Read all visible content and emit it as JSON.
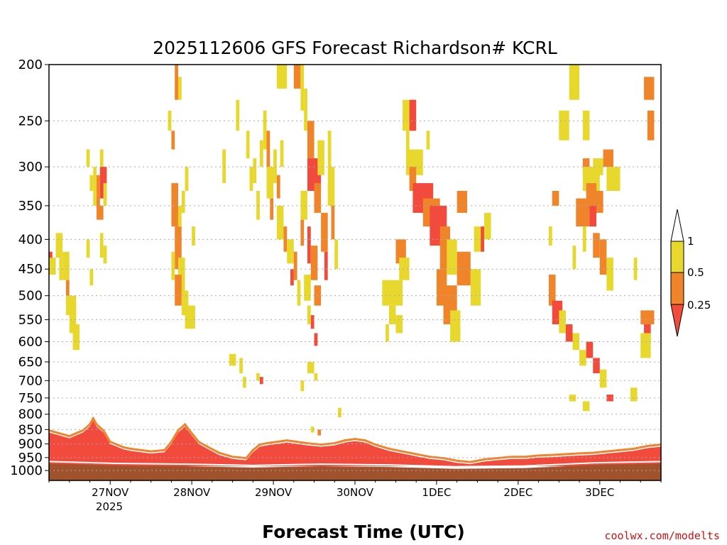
{
  "chart_data": {
    "type": "heatmap",
    "title": "2025112606 GFS Forecast Richardson# KCRL",
    "xlabel": "Forecast Time (UTC)",
    "credit": "coolwx.com/modelts",
    "y_axis": {
      "scale": "log-pressure",
      "ylim": [
        1040,
        200
      ],
      "tick_labels": [
        "200",
        "250",
        "300",
        "350",
        "400",
        "450",
        "500",
        "550",
        "600",
        "650",
        "700",
        "750",
        "800",
        "850",
        "900",
        "950",
        "1000"
      ]
    },
    "x_axis": {
      "xlim_hours": [
        0,
        180
      ],
      "tick_labels": [
        "27NOV",
        "28NOV",
        "29NOV",
        "30NOV",
        "1DEC",
        "2DEC",
        "3DEC"
      ],
      "tick_hours": [
        18,
        42,
        66,
        90,
        114,
        138,
        162
      ],
      "year_label": "2025"
    },
    "legend": {
      "bins": [
        {
          "label": "0.25",
          "color": "#f24a3c"
        },
        {
          "label": "0.5",
          "color": "#f0842a"
        },
        {
          "label": "1",
          "color": "#e8d82e"
        }
      ],
      "placement": "right"
    },
    "colors": {
      "lt025": "#f24a3c",
      "lt05": "#f0842a",
      "lt1": "#e8d82e",
      "ground": "#a0522d"
    },
    "cells": [
      [
        0,
        1,
        420,
        450,
        "lt025"
      ],
      [
        0,
        2,
        430,
        460,
        "lt1"
      ],
      [
        2,
        4,
        390,
        430,
        "lt1"
      ],
      [
        3,
        4,
        430,
        470,
        "lt1"
      ],
      [
        4,
        6,
        420,
        470,
        "lt1"
      ],
      [
        5,
        6,
        470,
        520,
        "lt05"
      ],
      [
        5,
        8,
        500,
        540,
        "lt1"
      ],
      [
        6,
        8,
        520,
        580,
        "lt1"
      ],
      [
        7,
        9,
        560,
        620,
        "lt1"
      ],
      [
        11,
        12,
        280,
        300,
        "lt1"
      ],
      [
        12,
        13,
        310,
        330,
        "lt1"
      ],
      [
        13,
        14,
        300,
        350,
        "lt1"
      ],
      [
        14,
        15,
        310,
        360,
        "lt05"
      ],
      [
        15,
        16,
        280,
        330,
        "lt1"
      ],
      [
        15,
        17,
        300,
        340,
        "lt025"
      ],
      [
        14,
        16,
        350,
        370,
        "lt05"
      ],
      [
        16,
        17,
        320,
        350,
        "lt1"
      ],
      [
        11,
        12,
        400,
        430,
        "lt1"
      ],
      [
        12,
        13,
        450,
        480,
        "lt1"
      ],
      [
        15,
        16,
        390,
        430,
        "lt1"
      ],
      [
        16,
        17,
        410,
        440,
        "lt1"
      ],
      [
        37,
        38,
        200,
        230,
        "lt05"
      ],
      [
        38,
        39,
        210,
        230,
        "lt1"
      ],
      [
        36,
        37,
        260,
        280,
        "lt05"
      ],
      [
        35,
        36,
        240,
        260,
        "lt1"
      ],
      [
        36,
        38,
        320,
        380,
        "lt05"
      ],
      [
        37,
        39,
        380,
        450,
        "lt05"
      ],
      [
        36,
        37,
        420,
        470,
        "lt1"
      ],
      [
        38,
        40,
        430,
        500,
        "lt1"
      ],
      [
        37,
        39,
        460,
        520,
        "lt05"
      ],
      [
        39,
        41,
        490,
        540,
        "lt1"
      ],
      [
        40,
        43,
        520,
        570,
        "lt1"
      ],
      [
        38,
        39,
        350,
        380,
        "lt1"
      ],
      [
        39,
        40,
        330,
        360,
        "lt1"
      ],
      [
        40,
        41,
        300,
        330,
        "lt1"
      ],
      [
        42,
        43,
        380,
        410,
        "lt1"
      ],
      [
        51,
        52,
        280,
        320,
        "lt1"
      ],
      [
        55,
        56,
        230,
        260,
        "lt1"
      ],
      [
        58,
        59,
        260,
        290,
        "lt1"
      ],
      [
        59,
        60,
        300,
        330,
        "lt1"
      ],
      [
        60,
        61,
        290,
        320,
        "lt1"
      ],
      [
        61,
        62,
        330,
        370,
        "lt1"
      ],
      [
        62,
        63,
        270,
        300,
        "lt1"
      ],
      [
        63,
        64,
        240,
        280,
        "lt1"
      ],
      [
        64,
        65,
        260,
        300,
        "lt05"
      ],
      [
        64,
        66,
        300,
        340,
        "lt1"
      ],
      [
        65,
        66,
        340,
        370,
        "lt05"
      ],
      [
        66,
        67,
        280,
        320,
        "lt1"
      ],
      [
        67,
        68,
        310,
        340,
        "lt05"
      ],
      [
        68,
        69,
        270,
        300,
        "lt1"
      ],
      [
        67,
        69,
        350,
        400,
        "lt1"
      ],
      [
        69,
        70,
        380,
        420,
        "lt05"
      ],
      [
        70,
        72,
        400,
        440,
        "lt1"
      ],
      [
        71,
        72,
        450,
        480,
        "lt025"
      ],
      [
        72,
        73,
        420,
        470,
        "lt05"
      ],
      [
        73,
        74,
        470,
        520,
        "lt1"
      ],
      [
        67,
        70,
        200,
        220,
        "lt1"
      ],
      [
        72,
        74,
        200,
        220,
        "lt05"
      ],
      [
        74,
        75,
        200,
        240,
        "lt1"
      ],
      [
        75,
        76,
        220,
        260,
        "lt1"
      ],
      [
        76,
        80,
        290,
        330,
        "lt025"
      ],
      [
        76,
        78,
        250,
        290,
        "lt05"
      ],
      [
        78,
        80,
        320,
        360,
        "lt05"
      ],
      [
        79,
        81,
        270,
        310,
        "lt1"
      ],
      [
        74,
        76,
        330,
        370,
        "lt1"
      ],
      [
        74,
        75,
        370,
        410,
        "lt05"
      ],
      [
        76,
        77,
        380,
        440,
        "lt025"
      ],
      [
        77,
        79,
        410,
        470,
        "lt05"
      ],
      [
        75,
        77,
        460,
        510,
        "lt1"
      ],
      [
        78,
        80,
        480,
        520,
        "lt05"
      ],
      [
        80,
        82,
        360,
        420,
        "lt05"
      ],
      [
        81,
        82,
        420,
        470,
        "lt025"
      ],
      [
        82,
        84,
        300,
        350,
        "lt1"
      ],
      [
        83,
        84,
        350,
        400,
        "lt05"
      ],
      [
        84,
        85,
        400,
        450,
        "lt1"
      ],
      [
        77,
        78,
        540,
        570,
        "lt025"
      ],
      [
        78,
        79,
        580,
        610,
        "lt025"
      ],
      [
        76,
        77,
        520,
        560,
        "lt1"
      ],
      [
        82,
        83,
        260,
        300,
        "lt1"
      ],
      [
        53,
        55,
        630,
        660,
        "lt1"
      ],
      [
        56,
        57,
        640,
        680,
        "lt1"
      ],
      [
        57,
        58,
        690,
        720,
        "lt1"
      ],
      [
        62,
        63,
        690,
        710,
        "lt025"
      ],
      [
        61,
        62,
        680,
        700,
        "lt1"
      ],
      [
        74,
        75,
        700,
        730,
        "lt1"
      ],
      [
        76,
        78,
        650,
        680,
        "lt1"
      ],
      [
        78,
        79,
        680,
        700,
        "lt1"
      ],
      [
        85,
        86,
        780,
        810,
        "lt1"
      ],
      [
        79,
        80,
        850,
        870,
        "lt05"
      ],
      [
        77,
        78,
        840,
        860,
        "lt1"
      ],
      [
        104,
        107,
        230,
        260,
        "lt1"
      ],
      [
        106,
        108,
        230,
        260,
        "lt025"
      ],
      [
        105,
        106,
        250,
        280,
        "lt1"
      ],
      [
        111,
        112,
        260,
        280,
        "lt1"
      ],
      [
        105,
        110,
        280,
        310,
        "lt1"
      ],
      [
        106,
        108,
        300,
        330,
        "lt05"
      ],
      [
        107,
        113,
        320,
        360,
        "lt025"
      ],
      [
        110,
        115,
        340,
        380,
        "lt05"
      ],
      [
        112,
        117,
        350,
        410,
        "lt025"
      ],
      [
        115,
        118,
        380,
        450,
        "lt05"
      ],
      [
        117,
        120,
        400,
        460,
        "lt1"
      ],
      [
        114,
        117,
        450,
        520,
        "lt05"
      ],
      [
        116,
        120,
        480,
        560,
        "lt05"
      ],
      [
        118,
        121,
        530,
        600,
        "lt1"
      ],
      [
        120,
        123,
        330,
        360,
        "lt05"
      ],
      [
        125,
        128,
        380,
        420,
        "lt1"
      ],
      [
        120,
        124,
        420,
        480,
        "lt05"
      ],
      [
        124,
        127,
        450,
        520,
        "lt1"
      ],
      [
        98,
        104,
        470,
        520,
        "lt1"
      ],
      [
        100,
        102,
        520,
        560,
        "lt1"
      ],
      [
        102,
        104,
        540,
        580,
        "lt1"
      ],
      [
        102,
        105,
        400,
        440,
        "lt05"
      ],
      [
        103,
        106,
        430,
        470,
        "lt1"
      ],
      [
        99,
        100,
        560,
        600,
        "lt1"
      ],
      [
        127,
        128,
        380,
        420,
        "lt025"
      ],
      [
        128,
        130,
        360,
        400,
        "lt1"
      ],
      [
        153,
        156,
        200,
        230,
        "lt1"
      ],
      [
        150,
        153,
        240,
        270,
        "lt1"
      ],
      [
        157,
        159,
        240,
        270,
        "lt1"
      ],
      [
        160,
        163,
        290,
        310,
        "lt1"
      ],
      [
        163,
        166,
        280,
        300,
        "lt05"
      ],
      [
        157,
        159,
        290,
        310,
        "lt05"
      ],
      [
        157,
        162,
        300,
        330,
        "lt1"
      ],
      [
        164,
        168,
        300,
        330,
        "lt1"
      ],
      [
        158,
        161,
        320,
        360,
        "lt05"
      ],
      [
        161,
        163,
        330,
        360,
        "lt05"
      ],
      [
        155,
        159,
        340,
        380,
        "lt05"
      ],
      [
        159,
        161,
        350,
        380,
        "lt025"
      ],
      [
        157,
        158,
        380,
        420,
        "lt1"
      ],
      [
        160,
        162,
        390,
        430,
        "lt05"
      ],
      [
        162,
        164,
        400,
        460,
        "lt05"
      ],
      [
        164,
        166,
        430,
        490,
        "lt1"
      ],
      [
        148,
        150,
        330,
        350,
        "lt05"
      ],
      [
        147,
        148,
        380,
        410,
        "lt1"
      ],
      [
        154,
        155,
        410,
        450,
        "lt1"
      ],
      [
        147,
        149,
        460,
        520,
        "lt05"
      ],
      [
        148,
        151,
        510,
        560,
        "lt025"
      ],
      [
        150,
        152,
        530,
        580,
        "lt1"
      ],
      [
        152,
        154,
        560,
        600,
        "lt025"
      ],
      [
        154,
        156,
        580,
        620,
        "lt1"
      ],
      [
        156,
        158,
        620,
        660,
        "lt1"
      ],
      [
        158,
        160,
        600,
        640,
        "lt025"
      ],
      [
        160,
        162,
        640,
        680,
        "lt025"
      ],
      [
        162,
        164,
        670,
        720,
        "lt1"
      ],
      [
        164,
        166,
        740,
        760,
        "lt025"
      ],
      [
        157,
        159,
        760,
        790,
        "lt1"
      ],
      [
        153,
        155,
        740,
        760,
        "lt1"
      ],
      [
        175,
        178,
        210,
        230,
        "lt05"
      ],
      [
        176,
        178,
        240,
        270,
        "lt05"
      ],
      [
        174,
        178,
        530,
        560,
        "lt05"
      ],
      [
        175,
        177,
        560,
        600,
        "lt025"
      ],
      [
        174,
        177,
        580,
        640,
        "lt1"
      ],
      [
        172,
        173,
        430,
        470,
        "lt1"
      ],
      [
        171,
        173,
        720,
        760,
        "lt1"
      ]
    ],
    "pbl_top_hpa": [
      [
        0,
        860
      ],
      [
        3,
        870
      ],
      [
        6,
        880
      ],
      [
        8,
        870
      ],
      [
        10,
        860
      ],
      [
        12,
        840
      ],
      [
        13,
        820
      ],
      [
        14,
        840
      ],
      [
        16,
        860
      ],
      [
        18,
        900
      ],
      [
        20,
        910
      ],
      [
        22,
        920
      ],
      [
        24,
        925
      ],
      [
        27,
        930
      ],
      [
        30,
        935
      ],
      [
        34,
        930
      ],
      [
        36,
        900
      ],
      [
        38,
        860
      ],
      [
        40,
        840
      ],
      [
        42,
        870
      ],
      [
        44,
        900
      ],
      [
        47,
        920
      ],
      [
        50,
        940
      ],
      [
        54,
        955
      ],
      [
        58,
        960
      ],
      [
        60,
        930
      ],
      [
        62,
        910
      ],
      [
        64,
        905
      ],
      [
        67,
        900
      ],
      [
        70,
        895
      ],
      [
        73,
        900
      ],
      [
        76,
        905
      ],
      [
        80,
        910
      ],
      [
        84,
        905
      ],
      [
        87,
        895
      ],
      [
        90,
        890
      ],
      [
        93,
        895
      ],
      [
        96,
        910
      ],
      [
        100,
        925
      ],
      [
        104,
        935
      ],
      [
        108,
        945
      ],
      [
        112,
        955
      ],
      [
        116,
        960
      ],
      [
        120,
        970
      ],
      [
        124,
        975
      ],
      [
        128,
        965
      ],
      [
        132,
        960
      ],
      [
        136,
        955
      ],
      [
        140,
        955
      ],
      [
        144,
        950
      ],
      [
        148,
        948
      ],
      [
        152,
        945
      ],
      [
        156,
        942
      ],
      [
        160,
        940
      ],
      [
        164,
        935
      ],
      [
        168,
        930
      ],
      [
        172,
        925
      ],
      [
        176,
        915
      ],
      [
        180,
        910
      ]
    ],
    "sfc_hpa": [
      [
        0,
        965
      ],
      [
        20,
        972
      ],
      [
        40,
        975
      ],
      [
        60,
        980
      ],
      [
        80,
        975
      ],
      [
        100,
        978
      ],
      [
        120,
        985
      ],
      [
        140,
        982
      ],
      [
        160,
        970
      ],
      [
        180,
        965
      ]
    ]
  }
}
